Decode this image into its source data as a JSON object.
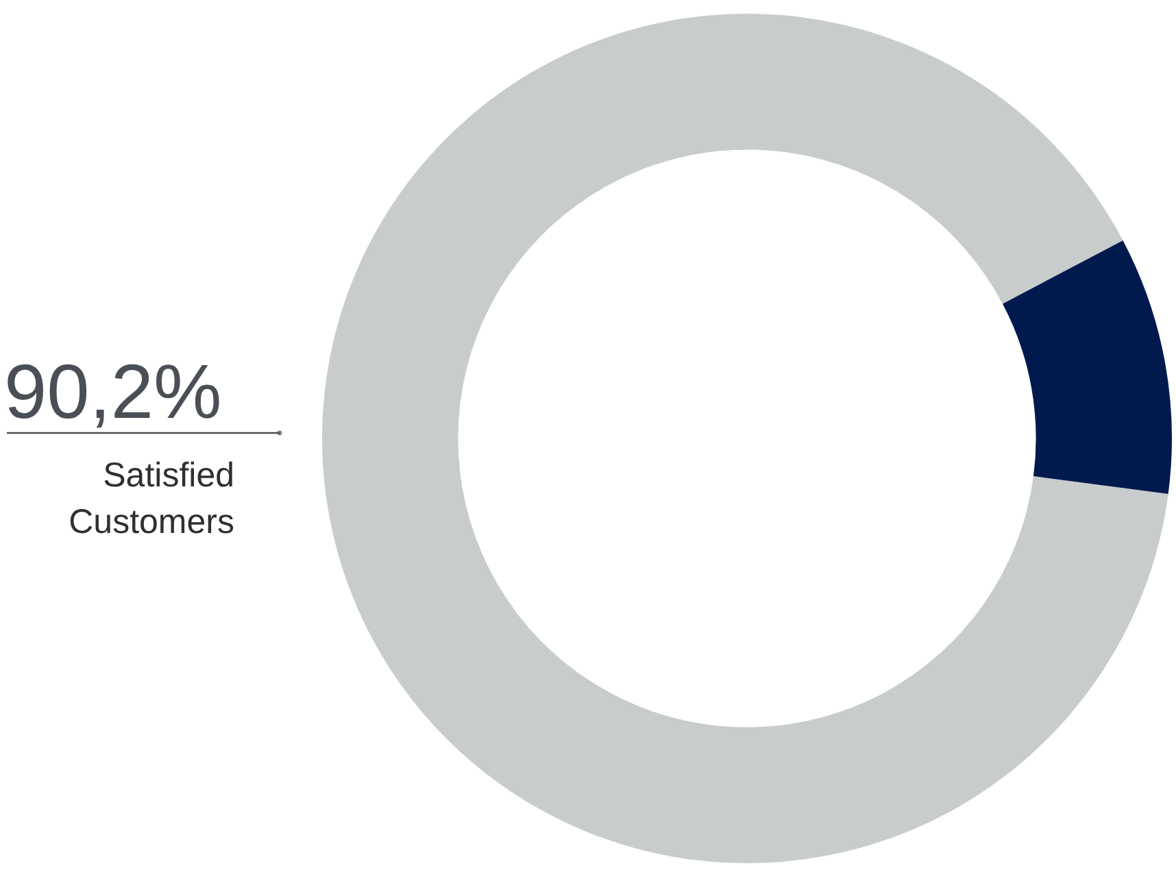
{
  "chart_data": {
    "type": "donut",
    "categories": [
      "Satisfied Customers",
      null
    ],
    "values": [
      90.2,
      9.8
    ],
    "colors": [
      "#c8cccd",
      "#001a4d"
    ],
    "value_labels": [
      "90,2%",
      null
    ]
  }
}
